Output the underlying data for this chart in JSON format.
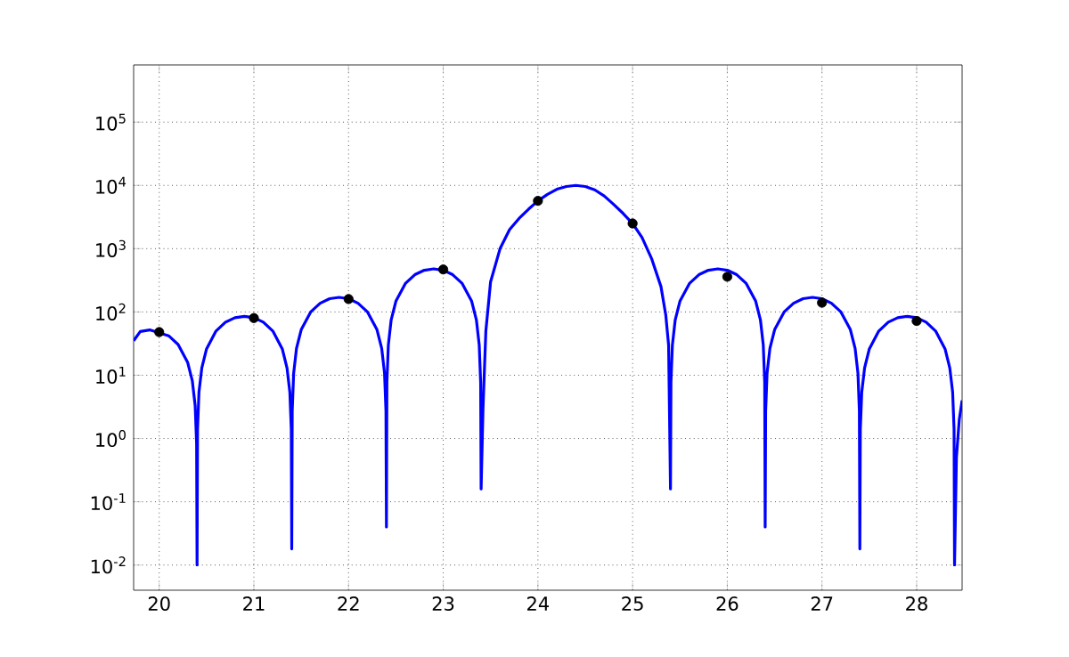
{
  "chart_data": {
    "type": "line",
    "log": "y",
    "grid": true,
    "xlim": [
      19.73,
      28.48
    ],
    "ylim": [
      0.004,
      800000
    ],
    "xticks": [
      20,
      21,
      22,
      23,
      24,
      25,
      26,
      27,
      28
    ],
    "yticks": [
      {
        "value": 0.01,
        "label": "10$^{-2}$"
      },
      {
        "value": 0.1,
        "label": "10$^{-1}$"
      },
      {
        "value": 1,
        "label": "10$^{0}$"
      },
      {
        "value": 10,
        "label": "10$^{1}$"
      },
      {
        "value": 100,
        "label": "10$^{2}$"
      },
      {
        "value": 1000,
        "label": "10$^{3}$"
      },
      {
        "value": 10000,
        "label": "10$^{4}$"
      },
      {
        "value": 100000,
        "label": "10$^{5}$"
      }
    ],
    "series": [
      {
        "color": "#0000ff",
        "marker": "none",
        "line_style": "solid",
        "x": [
          19.73,
          19.8,
          19.9,
          20.1,
          20.2,
          20.3,
          20.35,
          20.38,
          20.395,
          20.4,
          20.405,
          20.42,
          20.45,
          20.5,
          20.6,
          20.7,
          20.8,
          20.9,
          21.0,
          21.1,
          21.2,
          21.3,
          21.35,
          21.38,
          21.395,
          21.4,
          21.405,
          21.42,
          21.45,
          21.5,
          21.6,
          21.7,
          21.8,
          21.9,
          22.0,
          22.1,
          22.2,
          22.3,
          22.35,
          22.38,
          22.395,
          22.4,
          22.405,
          22.42,
          22.45,
          22.5,
          22.6,
          22.7,
          22.8,
          22.9,
          23.0,
          23.1,
          23.2,
          23.3,
          23.35,
          23.38,
          23.395,
          23.4,
          23.42,
          23.45,
          23.5,
          23.6,
          23.7,
          23.8,
          23.9,
          24.0,
          24.1,
          24.2,
          24.3,
          24.4,
          24.5,
          24.6,
          24.7,
          24.8,
          24.9,
          25.0,
          25.1,
          25.2,
          25.3,
          25.35,
          25.38,
          25.4,
          25.405,
          25.42,
          25.45,
          25.5,
          25.6,
          25.7,
          25.8,
          25.9,
          26.0,
          26.1,
          26.2,
          26.3,
          26.35,
          26.38,
          26.395,
          26.4,
          26.405,
          26.42,
          26.45,
          26.5,
          26.6,
          26.7,
          26.8,
          26.9,
          27.0,
          27.1,
          27.2,
          27.3,
          27.35,
          27.38,
          27.395,
          27.4,
          27.405,
          27.42,
          27.45,
          27.5,
          27.6,
          27.7,
          27.8,
          27.9,
          28.0,
          28.1,
          28.2,
          28.3,
          28.35,
          28.38,
          28.395,
          28.4,
          28.42,
          28.45,
          28.48
        ],
        "values": [
          35,
          49,
          52,
          42,
          30.6,
          16,
          8.1,
          3.3,
          0.83,
          0.01,
          1.4,
          5.4,
          13,
          26,
          50,
          69,
          81,
          85,
          81,
          69,
          50,
          26,
          13,
          5.4,
          1.4,
          0.018,
          2.7,
          10.7,
          26.5,
          52.5,
          100,
          137.5,
          162,
          170,
          162,
          137.5,
          100,
          52.5,
          26.5,
          10.7,
          2.7,
          0.04,
          7.7,
          30,
          75,
          148,
          282,
          388,
          456,
          480,
          456,
          388,
          282,
          148,
          75,
          30,
          7.7,
          0.16,
          3,
          50,
          300,
          1000,
          2000,
          3000,
          4200,
          5700,
          7200,
          8700,
          9600,
          10000,
          9600,
          8500,
          6800,
          5000,
          3600,
          2500,
          1500,
          700,
          250,
          90,
          30,
          0.16,
          7.7,
          30,
          75,
          148,
          282,
          388,
          456,
          480,
          456,
          388,
          282,
          148,
          75,
          30,
          7.7,
          0.04,
          2.7,
          10.7,
          26.5,
          52.5,
          100,
          137.5,
          162,
          170,
          162,
          137.5,
          100,
          52.5,
          26.5,
          10.7,
          2.7,
          0.018,
          1.4,
          5.4,
          13,
          26,
          50,
          69,
          81,
          85,
          81,
          69,
          50,
          26,
          13,
          5.4,
          1.4,
          0.01,
          0.5,
          2,
          4
        ]
      },
      {
        "type": "scatter",
        "color": "#000000",
        "marker": "circle",
        "x": [
          20,
          21,
          22,
          23,
          24,
          25,
          26,
          27,
          28
        ],
        "values": [
          48,
          80,
          160,
          470,
          5700,
          2500,
          360,
          140,
          72
        ]
      }
    ]
  }
}
